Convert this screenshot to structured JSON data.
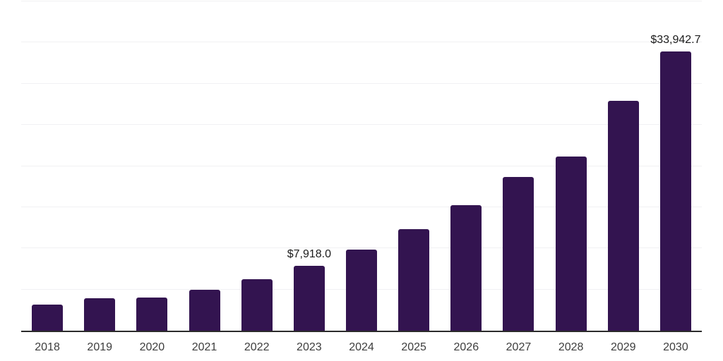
{
  "chart": {
    "background": "#ffffff",
    "bar_color": "#331450",
    "axis_color": "#2b2b2b",
    "gridline_color": "#f1f1f3",
    "data_label_color": "#1c1c1c",
    "tick_label_color": "#3d3d3d"
  },
  "chart_data": {
    "type": "bar",
    "title": "",
    "xlabel": "",
    "ylabel": "",
    "categories": [
      "2018",
      "2019",
      "2020",
      "2021",
      "2022",
      "2023",
      "2024",
      "2025",
      "2026",
      "2027",
      "2028",
      "2029",
      "2030"
    ],
    "values": [
      3190,
      3910,
      4000,
      5000,
      6280,
      7918.0,
      9830,
      12350,
      15250,
      18670,
      21150,
      27890,
      33942.7
    ],
    "annotations": [
      {
        "category": "2023",
        "text": "$7,918.0"
      },
      {
        "category": "2030",
        "text": "$33,942.7"
      }
    ],
    "ylim": [
      0,
      40000
    ],
    "gridline_step": 5000,
    "grid": true,
    "legend": false,
    "y_tick_labels_visible": false
  }
}
